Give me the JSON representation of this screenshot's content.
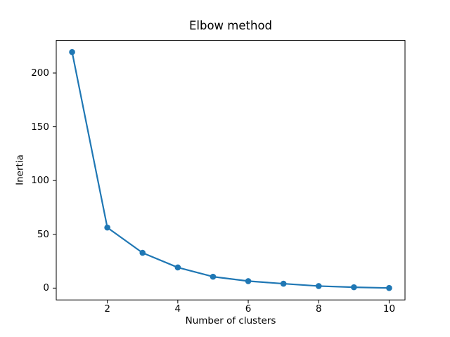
{
  "figure": {
    "background": "#ffffff",
    "spine_color": "#000000",
    "text_color": "#000000"
  },
  "chart_data": {
    "type": "line",
    "title": "Elbow method",
    "xlabel": "Number of clusters",
    "ylabel": "Inertia",
    "x": [
      1,
      2,
      3,
      4,
      5,
      6,
      7,
      8,
      9,
      10
    ],
    "y": [
      219.5,
      56.3,
      32.8,
      19.2,
      10.6,
      6.5,
      4.1,
      1.9,
      0.8,
      0.1
    ],
    "line_color": "#1f77b4",
    "marker": "circle",
    "marker_color": "#1f77b4",
    "xlim": [
      0.55,
      10.45
    ],
    "ylim": [
      -11,
      230.3
    ],
    "xticks": [
      2,
      4,
      6,
      8,
      10
    ],
    "xtick_labels": [
      "2",
      "4",
      "6",
      "8",
      "10"
    ],
    "yticks": [
      0,
      50,
      100,
      150,
      200
    ],
    "ytick_labels": [
      "0",
      "50",
      "100",
      "150",
      "200"
    ],
    "grid": false,
    "legend": null
  }
}
